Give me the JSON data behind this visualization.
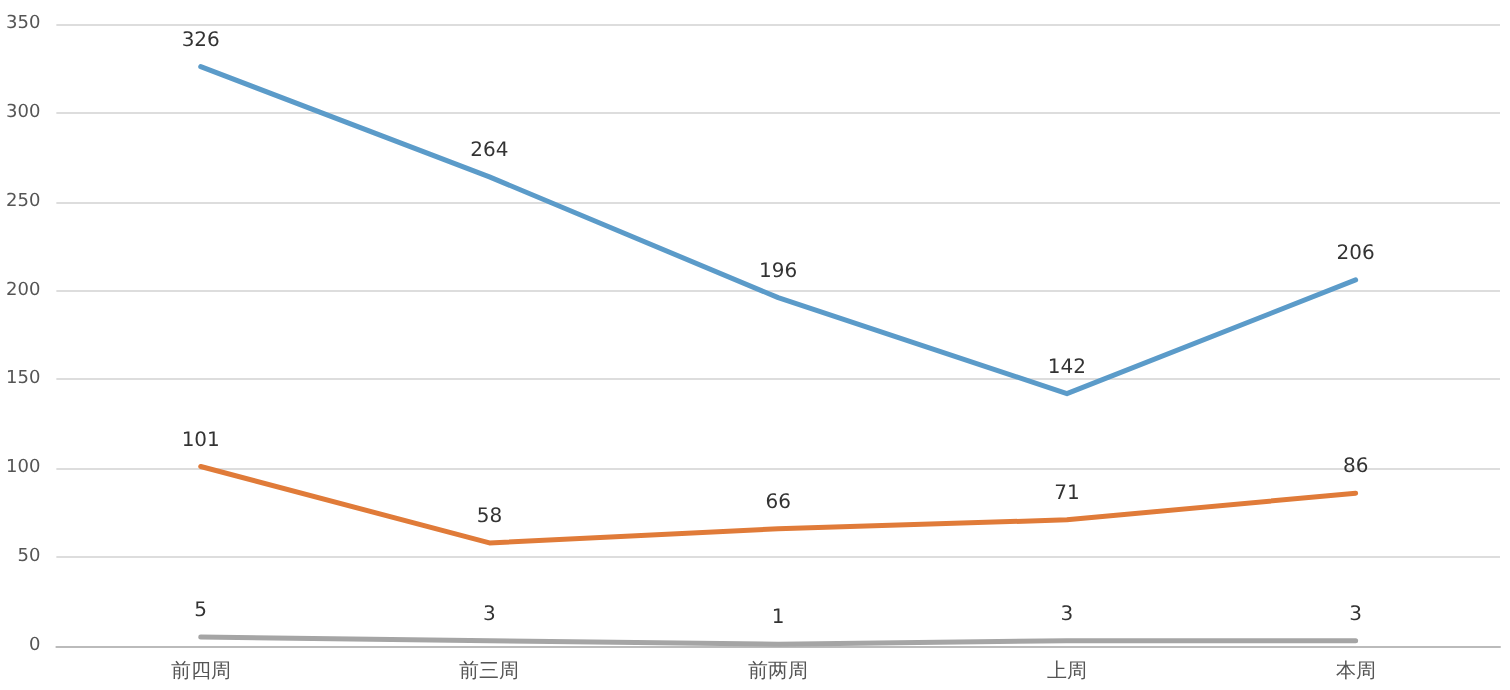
{
  "chart_data": {
    "type": "line",
    "categories": [
      "前四周",
      "前三周",
      "前两周",
      "上周",
      "本周"
    ],
    "series": [
      {
        "color": "#5b9bc9",
        "values": [
          326,
          264,
          196,
          142,
          206
        ]
      },
      {
        "color": "#e07b39",
        "values": [
          101,
          58,
          66,
          71,
          86
        ]
      },
      {
        "color": "#a5a5a5",
        "values": [
          5,
          3,
          1,
          3,
          3
        ]
      }
    ],
    "ylim": [
      0,
      350
    ],
    "yticks": [
      0,
      50,
      100,
      150,
      200,
      250,
      300,
      350
    ],
    "grid": "y",
    "data_labels": true,
    "marker": "none",
    "line_style": "solid"
  }
}
